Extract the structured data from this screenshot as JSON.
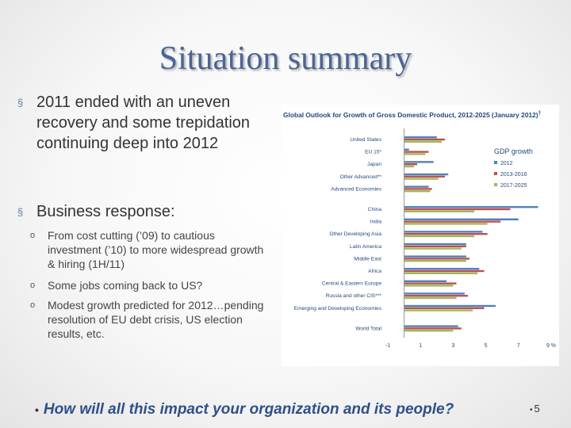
{
  "slide": {
    "title": "Situation summary",
    "bullets": [
      {
        "marker": "§",
        "text": "2011 ended with an uneven recovery and some trepidation continuing deep into 2012"
      },
      {
        "marker": "§",
        "text": "Business response:"
      }
    ],
    "sub_bullets": [
      {
        "marker": "o",
        "text": "From cost cutting (’09) to cautious investment (’10) to more widespread growth & hiring (1H/11)"
      },
      {
        "marker": "o",
        "text": "Some jobs coming back to US?"
      },
      {
        "marker": "o",
        "text": "Modest growth predicted for 2012…pending resolution of EU debt crisis, US election results, etc."
      }
    ],
    "question_marker": "•",
    "question": "How will all this impact your organization and its people?",
    "page_marker": "•",
    "page_number": "5"
  },
  "chart_data": {
    "type": "bar",
    "orientation": "horizontal",
    "title": "Global Outlook for Growth of Gross Domestic Product, 2012-2025 (January 2012)",
    "title_superscript": "†",
    "legend_title": "GDP growth",
    "legend_position": "top-right",
    "categories": [
      "United States",
      "EU 15*",
      "Japan",
      "Other Advanced**",
      "Advanced Economies",
      "China",
      "India",
      "Other Developing Asia",
      "Latin America",
      "Middle East",
      "Africa",
      "Central & Eastern Europe",
      "Russia and other CIS***",
      "Emerging and Developing Economies",
      "World Total"
    ],
    "groups": [
      [
        0,
        1,
        2,
        3,
        4
      ],
      [
        5,
        6,
        7,
        8,
        9,
        10,
        11,
        12,
        13
      ],
      [
        14
      ]
    ],
    "series": [
      {
        "name": "2012",
        "color": "#4f81bd",
        "values": [
          2.0,
          0.3,
          1.8,
          2.7,
          1.5,
          8.2,
          7.0,
          4.8,
          3.8,
          3.8,
          4.6,
          2.6,
          3.7,
          5.6,
          3.3
        ]
      },
      {
        "name": "2013-2016",
        "color": "#c0504d",
        "values": [
          2.5,
          1.5,
          0.8,
          2.5,
          1.7,
          6.5,
          5.9,
          5.1,
          3.8,
          4.0,
          4.9,
          3.2,
          3.9,
          4.9,
          3.5
        ]
      },
      {
        "name": "2017-2025",
        "color": "#9bbb59",
        "values": [
          2.3,
          1.3,
          0.6,
          2.1,
          1.6,
          4.3,
          5.1,
          4.3,
          3.5,
          3.8,
          4.5,
          3.0,
          3.2,
          4.2,
          3.0
        ]
      }
    ],
    "x_ticks": [
      "-1",
      "1",
      "3",
      "5",
      "7",
      "9 %"
    ],
    "xlim": [
      -1,
      9
    ],
    "grid": false
  }
}
